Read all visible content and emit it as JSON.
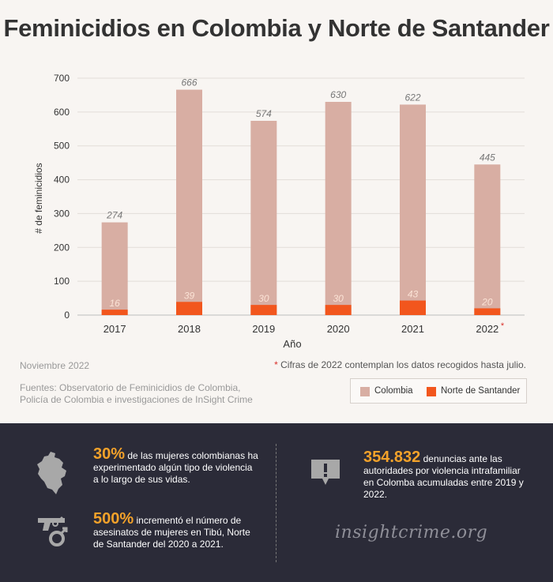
{
  "chart_data": {
    "type": "bar",
    "title": "Feminicidios en Colombia y Norte de Santander",
    "ylabel": "# de feminicidios",
    "xlabel": "Año",
    "ylim": [
      0,
      700
    ],
    "yticks": [
      0,
      100,
      200,
      300,
      400,
      500,
      600,
      700
    ],
    "categories": [
      "2017",
      "2018",
      "2019",
      "2020",
      "2021",
      "2022"
    ],
    "category_markers": [
      "",
      "",
      "",
      "",
      "",
      "*"
    ],
    "series": [
      {
        "name": "Colombia",
        "color": "#d8aea3",
        "values": [
          274,
          666,
          574,
          630,
          622,
          445
        ]
      },
      {
        "name": "Norte de Santander",
        "color": "#f2561d",
        "values": [
          16,
          39,
          30,
          30,
          43,
          20
        ]
      }
    ],
    "legend_position": "bottom-right"
  },
  "footer": {
    "date": "Noviembre 2022",
    "note_star": "*",
    "note": "Cifras de 2022 contemplan los datos recogidos hasta julio.",
    "sources_line1": "Fuentes: Observatorio de Feminicidios de Colombia,",
    "sources_line2": "Policía de Colombia e investigaciones de InSight Crime"
  },
  "stats": [
    {
      "value": "30%",
      "text": " de las mujeres colombianas ha experimentado algún tipo de violencia a lo largo de sus vidas.",
      "icon": "colombia-map-icon"
    },
    {
      "value": "500%",
      "text": " incrementó el número de asesinatos de mujeres en Tibú, Norte de Santander del 2020 a 2021.",
      "icon": "gun-female-icon"
    },
    {
      "value": "354.832",
      "text": " denuncias ante las autoridades por violencia intrafamiliar en Colomba acumuladas entre 2019 y 2022.",
      "icon": "alert-speech-icon"
    }
  ],
  "brand": "insightcrime.org",
  "colors": {
    "colombia": "#d8aea3",
    "norte": "#f2561d",
    "accent": "#f3a22a",
    "panel": "#2b2b38"
  }
}
